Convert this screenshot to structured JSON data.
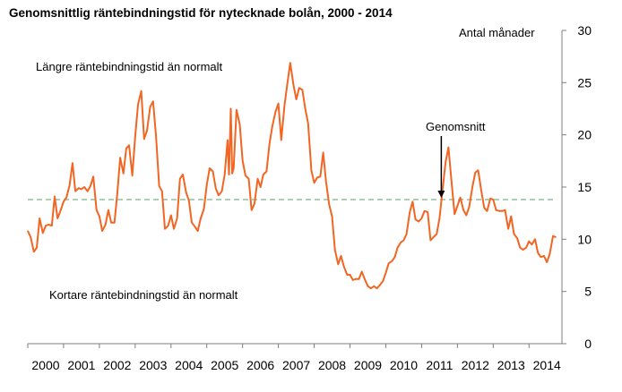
{
  "chart_data": {
    "type": "line",
    "title": "Genomsnittlig räntebindningstid för nytecknade bolån, 2000 - 2014",
    "ylabel": "Antal månader",
    "xlabel": "",
    "ylim": [
      0,
      30
    ],
    "xlim": [
      2000,
      2014.92
    ],
    "yticks": [
      "30",
      "25",
      "20",
      "15",
      "10",
      "5",
      "0"
    ],
    "xticks": [
      "2000",
      "2001",
      "2002",
      "2003",
      "2004",
      "2005",
      "2006",
      "2007",
      "2008",
      "2009",
      "2010",
      "2011",
      "2012",
      "2013",
      "2014"
    ],
    "annotations": {
      "upper": "Längre räntebindningstid än normalt",
      "lower": "Kortare räntebindningstid än normalt",
      "average": "Genomsnitt"
    },
    "average_value": 13.8,
    "colors": {
      "series": "#f26522",
      "average": "#8fbf9f",
      "axis": "#7f7f7f"
    },
    "series": [
      {
        "name": "",
        "points": [
          [
            2000.0,
            10.8
          ],
          [
            2000.08,
            10.2
          ],
          [
            2000.17,
            8.8
          ],
          [
            2000.25,
            9.2
          ],
          [
            2000.33,
            12.0
          ],
          [
            2000.42,
            10.6
          ],
          [
            2000.5,
            11.3
          ],
          [
            2000.58,
            11.4
          ],
          [
            2000.67,
            11.3
          ],
          [
            2000.75,
            14.1
          ],
          [
            2000.83,
            12.0
          ],
          [
            2000.92,
            12.8
          ],
          [
            2001.0,
            13.6
          ],
          [
            2001.08,
            14.0
          ],
          [
            2001.17,
            15.2
          ],
          [
            2001.25,
            17.3
          ],
          [
            2001.33,
            14.6
          ],
          [
            2001.42,
            14.9
          ],
          [
            2001.5,
            14.8
          ],
          [
            2001.58,
            15.0
          ],
          [
            2001.67,
            14.6
          ],
          [
            2001.75,
            15.1
          ],
          [
            2001.83,
            16.0
          ],
          [
            2001.92,
            12.8
          ],
          [
            2002.0,
            12.2
          ],
          [
            2002.08,
            10.8
          ],
          [
            2002.17,
            11.4
          ],
          [
            2002.25,
            12.8
          ],
          [
            2002.33,
            11.6
          ],
          [
            2002.42,
            11.6
          ],
          [
            2002.5,
            14.4
          ],
          [
            2002.58,
            17.8
          ],
          [
            2002.67,
            16.3
          ],
          [
            2002.75,
            18.7
          ],
          [
            2002.83,
            19.0
          ],
          [
            2002.92,
            16.1
          ],
          [
            2003.0,
            19.8
          ],
          [
            2003.08,
            22.9
          ],
          [
            2003.17,
            24.2
          ],
          [
            2003.25,
            19.6
          ],
          [
            2003.33,
            20.4
          ],
          [
            2003.42,
            22.7
          ],
          [
            2003.5,
            23.2
          ],
          [
            2003.58,
            20.0
          ],
          [
            2003.67,
            15.1
          ],
          [
            2003.75,
            14.6
          ],
          [
            2003.83,
            11.0
          ],
          [
            2003.92,
            11.3
          ],
          [
            2004.0,
            12.3
          ],
          [
            2004.08,
            11.0
          ],
          [
            2004.17,
            12.0
          ],
          [
            2004.25,
            15.8
          ],
          [
            2004.33,
            16.2
          ],
          [
            2004.42,
            14.5
          ],
          [
            2004.5,
            13.7
          ],
          [
            2004.58,
            11.6
          ],
          [
            2004.67,
            11.2
          ],
          [
            2004.75,
            10.8
          ],
          [
            2004.83,
            12.0
          ],
          [
            2004.92,
            12.9
          ],
          [
            2005.0,
            15.2
          ],
          [
            2005.08,
            16.8
          ],
          [
            2005.17,
            16.5
          ],
          [
            2005.25,
            14.9
          ],
          [
            2005.33,
            14.2
          ],
          [
            2005.42,
            14.6
          ],
          [
            2005.5,
            16.2
          ],
          [
            2005.58,
            19.5
          ],
          [
            2005.62,
            16.2
          ],
          [
            2005.67,
            22.5
          ],
          [
            2005.71,
            16.3
          ],
          [
            2005.75,
            16.8
          ],
          [
            2005.83,
            22.4
          ],
          [
            2005.92,
            21.0
          ],
          [
            2006.0,
            17.5
          ],
          [
            2006.08,
            16.1
          ],
          [
            2006.17,
            15.8
          ],
          [
            2006.25,
            12.8
          ],
          [
            2006.33,
            13.4
          ],
          [
            2006.42,
            15.8
          ],
          [
            2006.5,
            15.0
          ],
          [
            2006.58,
            16.2
          ],
          [
            2006.67,
            16.5
          ],
          [
            2006.75,
            19.1
          ],
          [
            2006.83,
            20.8
          ],
          [
            2006.92,
            22.2
          ],
          [
            2007.0,
            23.0
          ],
          [
            2007.08,
            19.5
          ],
          [
            2007.17,
            22.8
          ],
          [
            2007.25,
            24.9
          ],
          [
            2007.33,
            26.9
          ],
          [
            2007.42,
            24.8
          ],
          [
            2007.5,
            23.4
          ],
          [
            2007.58,
            24.5
          ],
          [
            2007.67,
            24.3
          ],
          [
            2007.75,
            22.5
          ],
          [
            2007.83,
            21.1
          ],
          [
            2007.92,
            16.6
          ],
          [
            2008.0,
            15.4
          ],
          [
            2008.08,
            15.9
          ],
          [
            2008.17,
            16.0
          ],
          [
            2008.25,
            18.3
          ],
          [
            2008.33,
            15.5
          ],
          [
            2008.42,
            13.3
          ],
          [
            2008.5,
            12.2
          ],
          [
            2008.58,
            9.0
          ],
          [
            2008.67,
            7.6
          ],
          [
            2008.75,
            8.4
          ],
          [
            2008.83,
            7.4
          ],
          [
            2008.92,
            6.6
          ],
          [
            2009.0,
            6.6
          ],
          [
            2009.08,
            6.1
          ],
          [
            2009.17,
            6.2
          ],
          [
            2009.25,
            6.2
          ],
          [
            2009.33,
            6.9
          ],
          [
            2009.42,
            6.1
          ],
          [
            2009.5,
            5.5
          ],
          [
            2009.58,
            5.3
          ],
          [
            2009.67,
            5.5
          ],
          [
            2009.75,
            5.3
          ],
          [
            2009.83,
            5.6
          ],
          [
            2009.92,
            6.0
          ],
          [
            2010.0,
            6.8
          ],
          [
            2010.08,
            7.7
          ],
          [
            2010.17,
            7.9
          ],
          [
            2010.25,
            8.3
          ],
          [
            2010.33,
            9.2
          ],
          [
            2010.42,
            9.7
          ],
          [
            2010.5,
            9.9
          ],
          [
            2010.58,
            10.5
          ],
          [
            2010.67,
            12.6
          ],
          [
            2010.75,
            13.6
          ],
          [
            2010.83,
            11.9
          ],
          [
            2010.92,
            11.7
          ],
          [
            2011.0,
            12.0
          ],
          [
            2011.08,
            12.7
          ],
          [
            2011.17,
            12.6
          ],
          [
            2011.25,
            9.9
          ],
          [
            2011.33,
            10.2
          ],
          [
            2011.42,
            10.5
          ],
          [
            2011.5,
            12.0
          ],
          [
            2011.58,
            14.6
          ],
          [
            2011.67,
            17.4
          ],
          [
            2011.75,
            18.8
          ],
          [
            2011.83,
            15.7
          ],
          [
            2011.92,
            12.4
          ],
          [
            2012.0,
            13.2
          ],
          [
            2012.08,
            14.0
          ],
          [
            2012.17,
            12.8
          ],
          [
            2012.25,
            12.3
          ],
          [
            2012.33,
            13.1
          ],
          [
            2012.42,
            15.0
          ],
          [
            2012.5,
            16.4
          ],
          [
            2012.58,
            16.6
          ],
          [
            2012.67,
            14.6
          ],
          [
            2012.75,
            13.0
          ],
          [
            2012.83,
            12.7
          ],
          [
            2012.92,
            13.9
          ],
          [
            2013.0,
            13.8
          ],
          [
            2013.08,
            12.8
          ],
          [
            2013.17,
            12.7
          ],
          [
            2013.25,
            12.7
          ],
          [
            2013.33,
            12.8
          ],
          [
            2013.42,
            11.0
          ],
          [
            2013.5,
            12.2
          ],
          [
            2013.58,
            10.5
          ],
          [
            2013.67,
            10.1
          ],
          [
            2013.75,
            9.2
          ],
          [
            2013.83,
            9.0
          ],
          [
            2013.92,
            9.2
          ],
          [
            2014.0,
            9.8
          ],
          [
            2014.08,
            9.5
          ],
          [
            2014.17,
            10.0
          ],
          [
            2014.25,
            8.7
          ],
          [
            2014.33,
            8.3
          ],
          [
            2014.42,
            8.4
          ],
          [
            2014.5,
            7.8
          ],
          [
            2014.58,
            8.6
          ],
          [
            2014.67,
            10.3
          ],
          [
            2014.75,
            10.2
          ]
        ]
      }
    ]
  }
}
